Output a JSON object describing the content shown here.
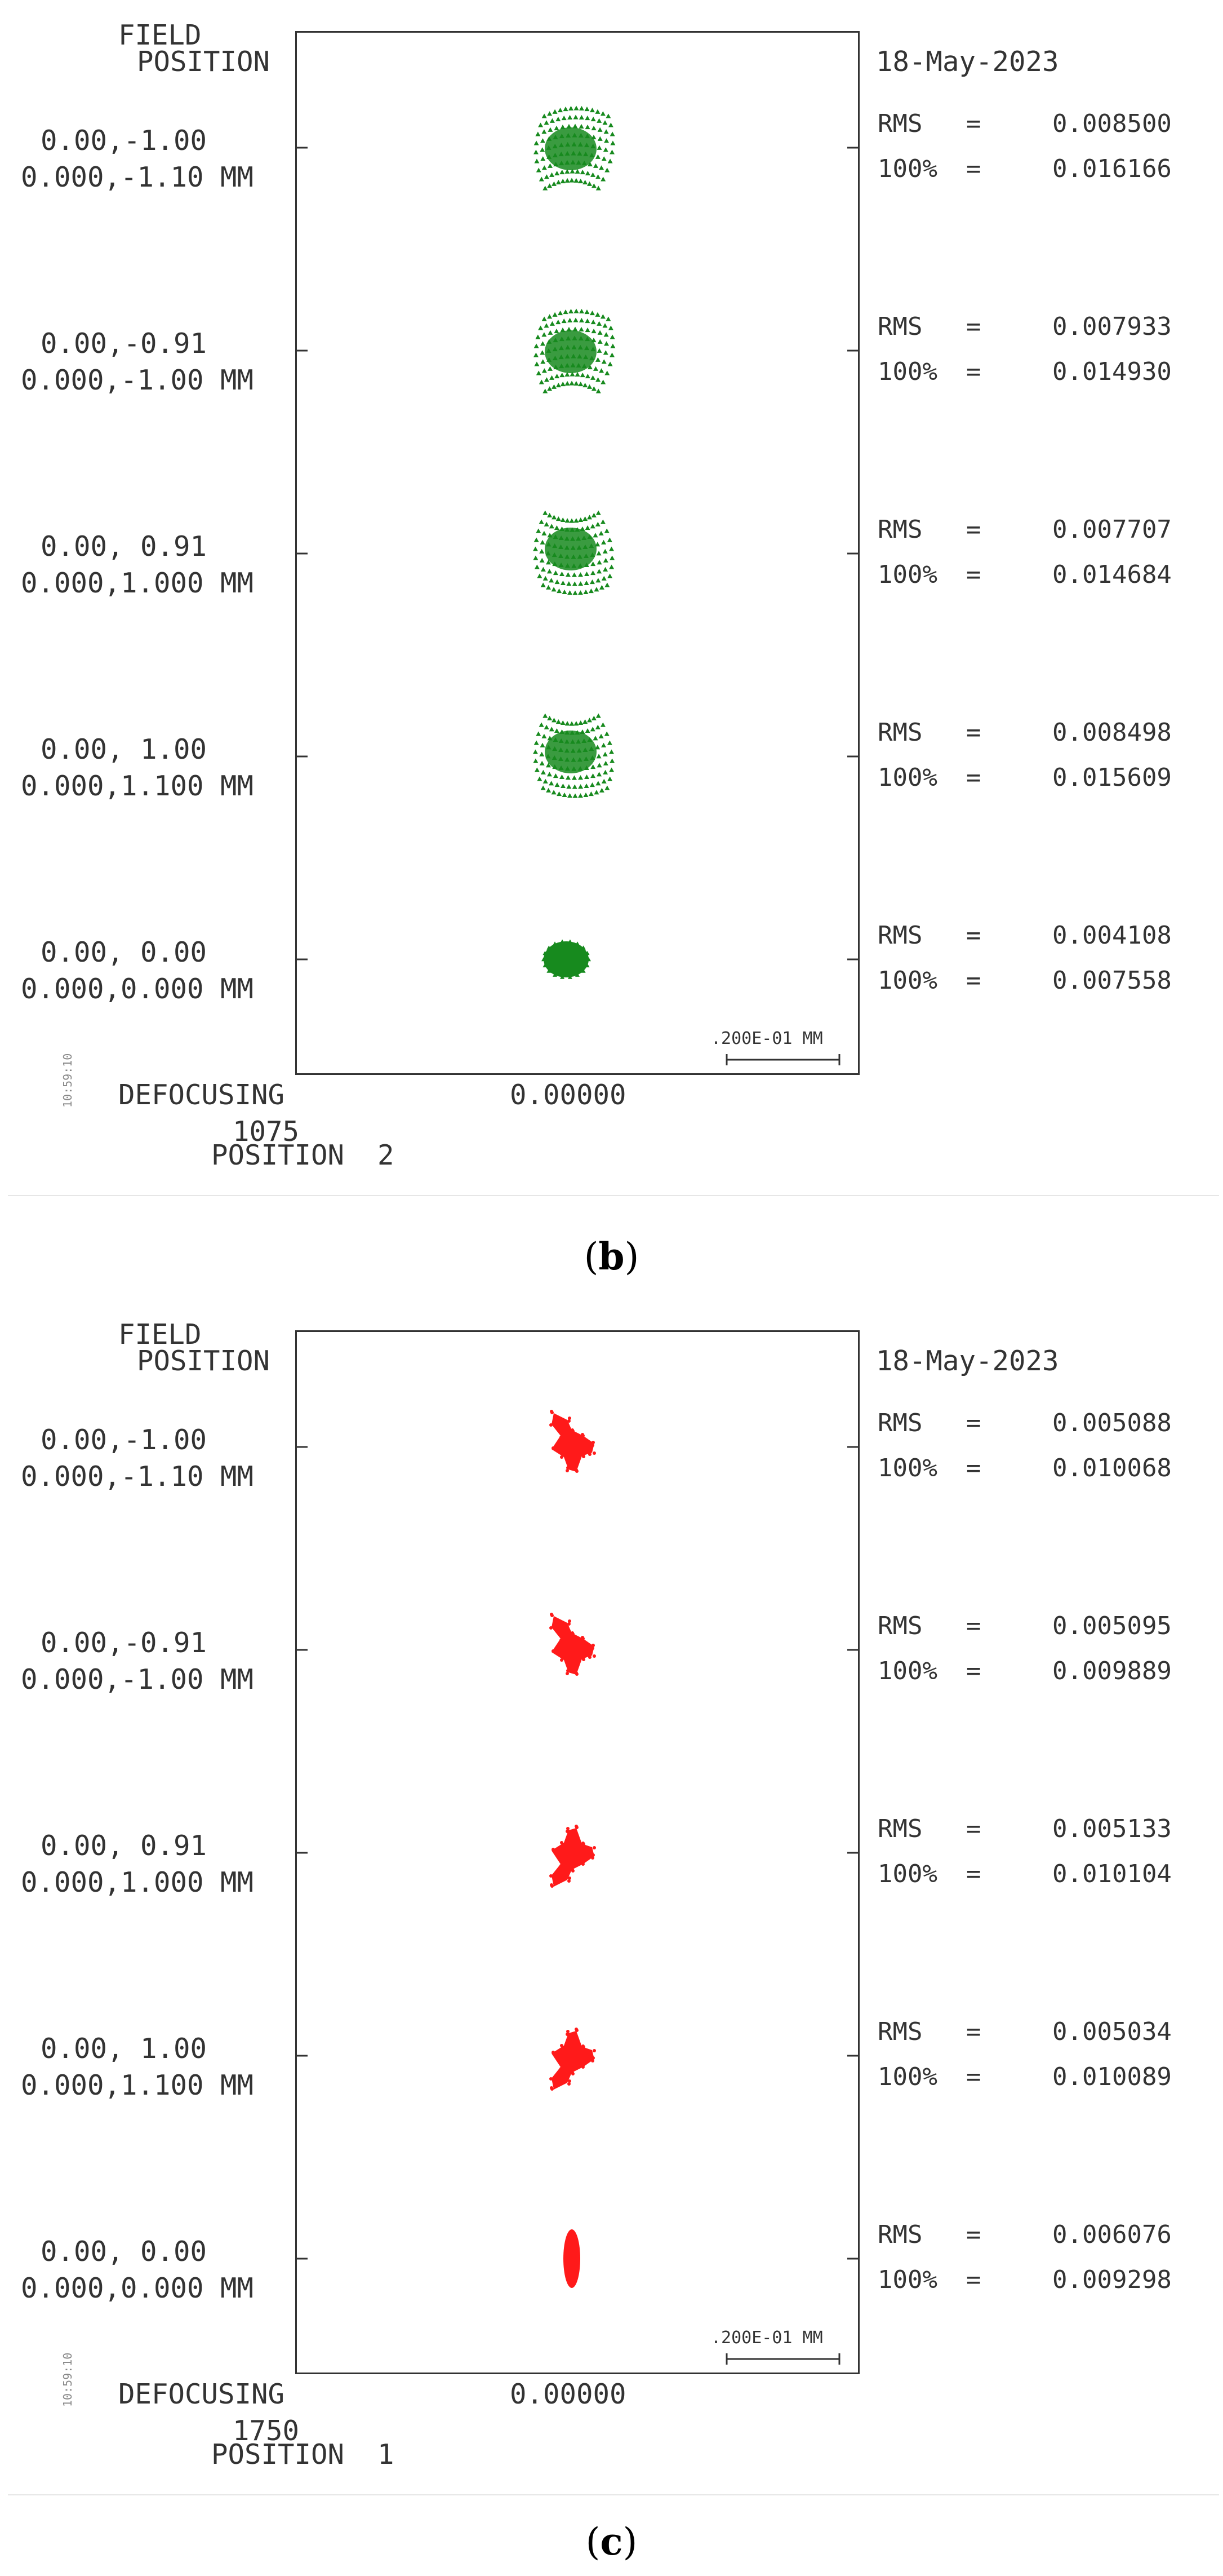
{
  "panels": [
    {
      "id": "b",
      "caption_letter": "b",
      "color": "#178a1e",
      "header": {
        "field": "FIELD",
        "position": "POSITION",
        "date": "18-May-2023"
      },
      "fields": [
        {
          "pos": "0.00,-1.00",
          "mm": "0.000,-1.10 MM",
          "rms": "0.008500",
          "hundred": "0.016166",
          "shape": "fan-up"
        },
        {
          "pos": "0.00,-0.91",
          "mm": "0.000,-1.00 MM",
          "rms": "0.007933",
          "hundred": "0.014930",
          "shape": "fan-up"
        },
        {
          "pos": "0.00, 0.91",
          "mm": "0.000,1.000 MM",
          "rms": "0.007707",
          "hundred": "0.014684",
          "shape": "fan-down"
        },
        {
          "pos": "0.00, 1.00",
          "mm": "0.000,1.100 MM",
          "rms": "0.008498",
          "hundred": "0.015609",
          "shape": "fan-down"
        },
        {
          "pos": "0.00, 0.00",
          "mm": "0.000,0.000 MM",
          "rms": "0.004108",
          "hundred": "0.007558",
          "shape": "blob"
        }
      ],
      "labels": {
        "rms": "RMS",
        "eq": "=",
        "hundred": "100%"
      },
      "scale_label": ".200E-01 MM",
      "footer": {
        "defocusing": "DEFOCUSING",
        "value": "0.00000",
        "num": "1075",
        "position": "POSITION  2",
        "time": "10:59:10"
      }
    },
    {
      "id": "c",
      "caption_letter": "c",
      "color": "#ff1a1a",
      "header": {
        "field": "FIELD",
        "position": "POSITION",
        "date": "18-May-2023"
      },
      "fields": [
        {
          "pos": "0.00,-1.00",
          "mm": "0.000,-1.10 MM",
          "rms": "0.005088",
          "hundred": "0.010068",
          "shape": "arrow-down"
        },
        {
          "pos": "0.00,-0.91",
          "mm": "0.000,-1.00 MM",
          "rms": "0.005095",
          "hundred": "0.009889",
          "shape": "arrow-down"
        },
        {
          "pos": "0.00, 0.91",
          "mm": "0.000,1.000 MM",
          "rms": "0.005133",
          "hundred": "0.010104",
          "shape": "arrow-up"
        },
        {
          "pos": "0.00, 1.00",
          "mm": "0.000,1.100 MM",
          "rms": "0.005034",
          "hundred": "0.010089",
          "shape": "arrow-up"
        },
        {
          "pos": "0.00, 0.00",
          "mm": "0.000,0.000 MM",
          "rms": "0.006076",
          "hundred": "0.009298",
          "shape": "ellipse"
        }
      ],
      "labels": {
        "rms": "RMS",
        "eq": "=",
        "hundred": "100%"
      },
      "scale_label": ".200E-01 MM",
      "footer": {
        "defocusing": "DEFOCUSING",
        "value": "0.00000",
        "num": "1750",
        "position": "POSITION  1",
        "time": "10:59:10"
      }
    }
  ]
}
